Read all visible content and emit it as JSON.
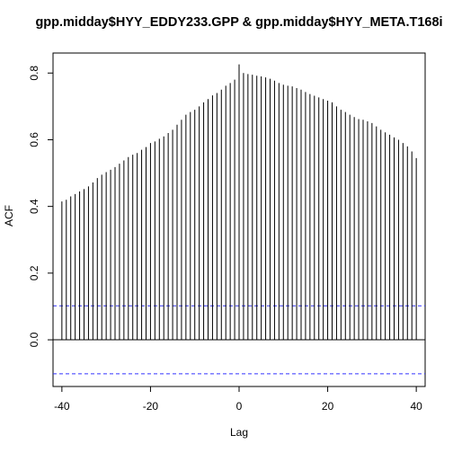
{
  "chart_data": {
    "type": "bar",
    "title": "gpp.midday$HYY_EDDY233.GPP & gpp.midday$HYY_META.T168i",
    "xlabel": "Lag",
    "ylabel": "ACF",
    "xlim": [
      -42,
      42
    ],
    "ylim": [
      -0.14,
      0.86
    ],
    "x_ticks": [
      -40,
      -20,
      0,
      20,
      40
    ],
    "x_tick_labels": [
      "-40",
      "-20",
      "0",
      "20",
      "40"
    ],
    "y_ticks": [
      0.0,
      0.2,
      0.4,
      0.6,
      0.8
    ],
    "y_tick_labels": [
      "0.0",
      "0.2",
      "0.4",
      "0.6",
      "0.8"
    ],
    "grid": false,
    "legend": "none",
    "zero_line": 0,
    "confidence_bounds": [
      0.102,
      -0.102
    ],
    "lags": [
      -40,
      -39,
      -38,
      -37,
      -36,
      -35,
      -34,
      -33,
      -32,
      -31,
      -30,
      -29,
      -28,
      -27,
      -26,
      -25,
      -24,
      -23,
      -22,
      -21,
      -20,
      -19,
      -18,
      -17,
      -16,
      -15,
      -14,
      -13,
      -12,
      -11,
      -10,
      -9,
      -8,
      -7,
      -6,
      -5,
      -4,
      -3,
      -2,
      -1,
      0,
      1,
      2,
      3,
      4,
      5,
      6,
      7,
      8,
      9,
      10,
      11,
      12,
      13,
      14,
      15,
      16,
      17,
      18,
      19,
      20,
      21,
      22,
      23,
      24,
      25,
      26,
      27,
      28,
      29,
      30,
      31,
      32,
      33,
      34,
      35,
      36,
      37,
      38,
      39,
      40
    ],
    "acf": [
      0.415,
      0.42,
      0.43,
      0.437,
      0.445,
      0.452,
      0.46,
      0.472,
      0.485,
      0.495,
      0.503,
      0.51,
      0.518,
      0.528,
      0.538,
      0.548,
      0.555,
      0.56,
      0.57,
      0.578,
      0.59,
      0.595,
      0.603,
      0.61,
      0.62,
      0.63,
      0.645,
      0.66,
      0.675,
      0.683,
      0.69,
      0.7,
      0.712,
      0.722,
      0.733,
      0.74,
      0.75,
      0.762,
      0.77,
      0.78,
      0.826,
      0.8,
      0.797,
      0.795,
      0.792,
      0.79,
      0.787,
      0.783,
      0.777,
      0.77,
      0.765,
      0.762,
      0.76,
      0.755,
      0.75,
      0.743,
      0.737,
      0.732,
      0.727,
      0.722,
      0.717,
      0.712,
      0.7,
      0.69,
      0.683,
      0.675,
      0.668,
      0.662,
      0.66,
      0.655,
      0.65,
      0.64,
      0.63,
      0.622,
      0.615,
      0.607,
      0.6,
      0.59,
      0.58,
      0.565,
      0.545
    ]
  },
  "colors": {
    "bars": "#000000",
    "confidence_line": "#3333ff",
    "axis": "#000000"
  }
}
